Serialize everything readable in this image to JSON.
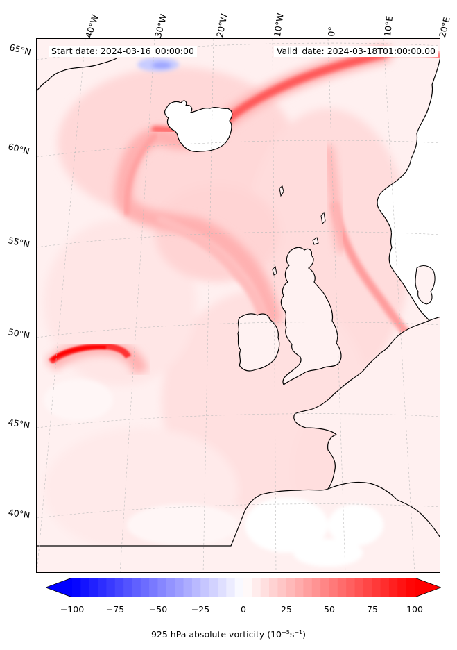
{
  "header": {
    "start_date": "Start date: 2024-03-16_00:00:00",
    "valid_date": "Valid_date: 2024-03-18T01:00:00.00"
  },
  "graticule": {
    "longitude_labels": [
      "40°W",
      "30°W",
      "20°W",
      "10°W",
      "0°",
      "10°E",
      "20°E"
    ],
    "latitude_labels": [
      "65°N",
      "60°N",
      "55°N",
      "50°N",
      "45°N",
      "40°N"
    ]
  },
  "colorbar": {
    "label_prefix": "925 hPa absolute vorticity (10",
    "label_exp1": "−5",
    "label_mid": "s",
    "label_exp2": "−1",
    "label_suffix": ")",
    "vmin": -100,
    "vmax": 100,
    "ticks": [
      "−100",
      "−75",
      "−50",
      "−25",
      "0",
      "25",
      "50",
      "75",
      "100"
    ],
    "colormap": "bwr",
    "extend": "both"
  },
  "colors": {
    "negative": "#0000ff",
    "neutral": "#ffffff",
    "positive": "#ff0000",
    "coastline": "#000000"
  }
}
